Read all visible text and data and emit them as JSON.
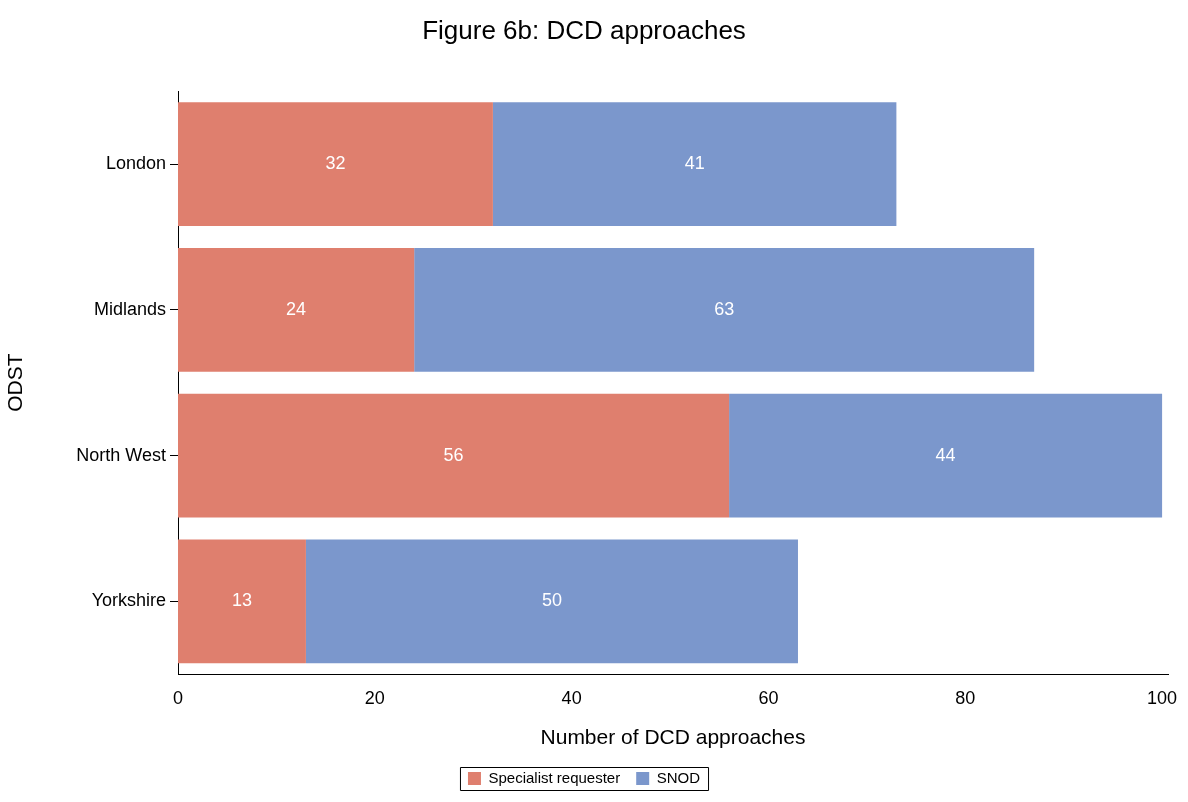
{
  "chart_data": {
    "type": "bar",
    "orientation": "horizontal",
    "stacked": true,
    "title": "Figure 6b: DCD approaches",
    "xlabel": "Number of DCD approaches",
    "ylabel": "ODST",
    "categories": [
      "London",
      "Midlands",
      "North West",
      "Yorkshire"
    ],
    "series": [
      {
        "name": "Specialist requester",
        "color": "#df7f6e",
        "values": [
          32,
          24,
          56,
          13
        ]
      },
      {
        "name": "SNOD",
        "color": "#7b97cc",
        "values": [
          41,
          63,
          44,
          50
        ]
      }
    ],
    "xlim": [
      0,
      100.6
    ],
    "xticks": [
      0,
      20,
      40,
      60,
      80,
      100
    ],
    "data_labels": true,
    "legend": "bottom",
    "grid": false
  }
}
